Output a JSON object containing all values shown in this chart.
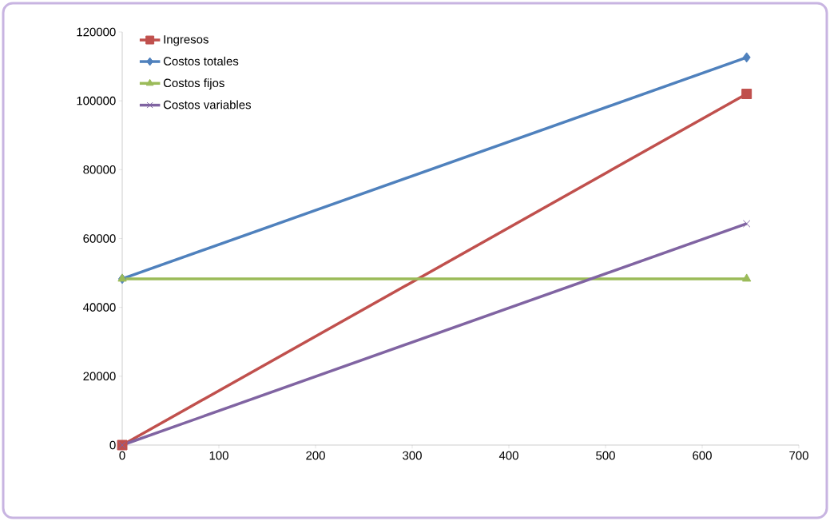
{
  "chart_data": {
    "type": "line",
    "x": [
      0,
      646
    ],
    "xlim": [
      0,
      700
    ],
    "ylim": [
      0,
      120000
    ],
    "xticks": [
      0,
      100,
      200,
      300,
      400,
      500,
      600,
      700
    ],
    "yticks": [
      0,
      20000,
      40000,
      60000,
      80000,
      100000,
      120000
    ],
    "grid": false,
    "legend": "top left",
    "series": [
      {
        "name": "Ingresos",
        "color": "#c0504d",
        "marker": "square",
        "values": [
          0,
          102000
        ]
      },
      {
        "name": "Costos totales",
        "color": "#4f81bd",
        "marker": "diamond",
        "values": [
          48300,
          112600
        ]
      },
      {
        "name": "Costos fijos",
        "color": "#9bbb59",
        "marker": "triangle",
        "values": [
          48300,
          48300
        ]
      },
      {
        "name": "Costos variables",
        "color": "#8064a2",
        "marker": "cross",
        "values": [
          0,
          64300
        ]
      }
    ]
  }
}
